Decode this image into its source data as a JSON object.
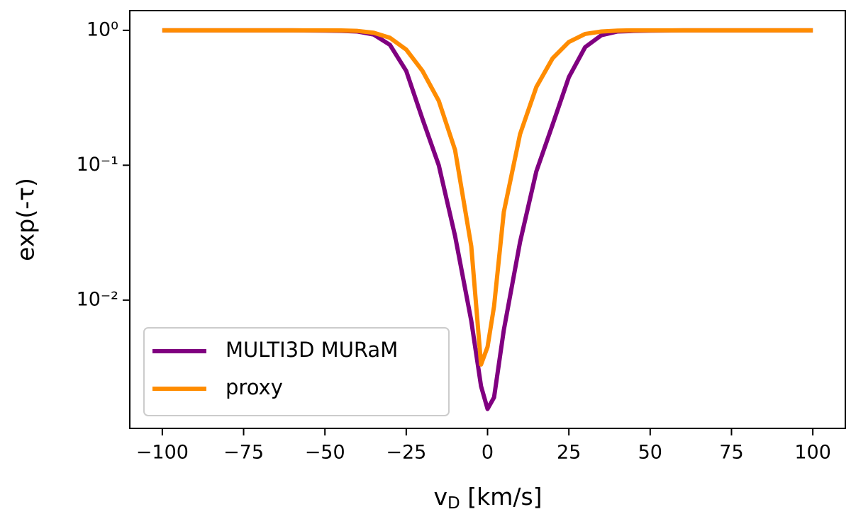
{
  "chart_data": {
    "type": "line",
    "xlabel": [
      "v",
      "D",
      " [km/s]"
    ],
    "ylabel": "exp(-τ)",
    "x": [
      -100,
      -80,
      -60,
      -50,
      -45,
      -40,
      -35,
      -30,
      -25,
      -20,
      -15,
      -10,
      -5,
      -2,
      0,
      2,
      5,
      10,
      15,
      20,
      25,
      30,
      35,
      40,
      45,
      50,
      60,
      80,
      100
    ],
    "series": [
      {
        "name": "MULTI3D MURaM",
        "color": "#800080",
        "values": [
          1,
          1,
          1,
          0.995,
          0.99,
          0.98,
          0.93,
          0.78,
          0.5,
          0.22,
          0.1,
          0.03,
          0.007,
          0.0023,
          0.00156,
          0.0019,
          0.006,
          0.027,
          0.09,
          0.2,
          0.45,
          0.75,
          0.92,
          0.98,
          0.99,
          0.995,
          1,
          1,
          1
        ]
      },
      {
        "name": "proxy",
        "color": "#ff8c00",
        "values": [
          1,
          1,
          1,
          1,
          0.998,
          0.99,
          0.96,
          0.88,
          0.72,
          0.5,
          0.3,
          0.13,
          0.025,
          0.00333,
          0.0045,
          0.009,
          0.045,
          0.17,
          0.38,
          0.62,
          0.82,
          0.94,
          0.98,
          0.995,
          1,
          1,
          1,
          1,
          1
        ]
      }
    ],
    "xlim": [
      -110,
      110
    ],
    "xticks": [
      {
        "value": -100,
        "label": "−100"
      },
      {
        "value": -75,
        "label": "−75"
      },
      {
        "value": -50,
        "label": "−50"
      },
      {
        "value": -25,
        "label": "−25"
      },
      0,
      25,
      50,
      75,
      100
    ],
    "ylim": [
      0.00112,
      1.4
    ],
    "yticks": [
      {
        "value": 1,
        "label": "10⁰"
      },
      {
        "value": 0.1,
        "label": "10⁻¹"
      },
      {
        "value": 0.01,
        "label": "10⁻²"
      }
    ],
    "ylog": true,
    "legend": "lower left"
  }
}
